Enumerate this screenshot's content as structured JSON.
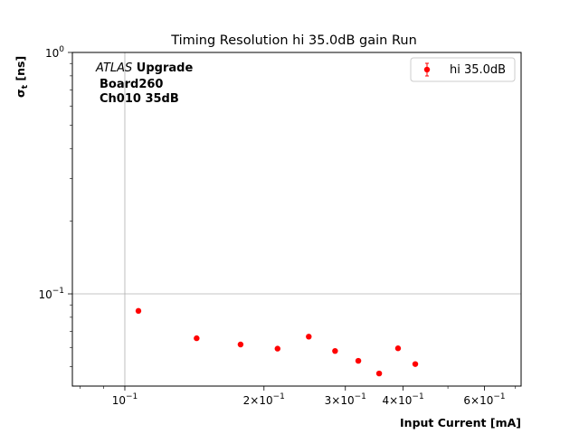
{
  "chart_data": {
    "type": "scatter",
    "title": "Timing Resolution hi 35.0dB gain Run",
    "xlabel": "Input Current [mA]",
    "ylabel": "σ",
    "ylabel_sub": "t",
    "ylabel_unit": " [ns]",
    "x_scale": "log",
    "y_scale": "log",
    "xlim": [
      0.077,
      0.72
    ],
    "ylim": [
      0.0415,
      1.0
    ],
    "grid": true,
    "legend": {
      "placement": "top-right",
      "entries": [
        "hi 35.0dB"
      ]
    },
    "annotation": {
      "italic": "ATLAS",
      "bold": " Upgrade",
      "line2": "Board260",
      "line3": "Ch010 35dB"
    },
    "x_major_ticks": [
      {
        "value": 0.1,
        "mantissa": "",
        "exp": "−1"
      },
      {
        "value": 0.2,
        "mantissa": "2×",
        "exp": "−1"
      },
      {
        "value": 0.3,
        "mantissa": "3×",
        "exp": "−1"
      },
      {
        "value": 0.4,
        "mantissa": "4×",
        "exp": "−1"
      },
      {
        "value": 0.6,
        "mantissa": "6×",
        "exp": "−1"
      }
    ],
    "x_minor_ticks": [
      0.08,
      0.09,
      0.5,
      0.7
    ],
    "y_major_ticks": [
      {
        "value": 0.1,
        "exp": "−1"
      },
      {
        "value": 1.0,
        "exp": "0"
      }
    ],
    "y_minor_ticks": [
      0.05,
      0.06,
      0.07,
      0.08,
      0.09,
      0.2,
      0.3,
      0.4,
      0.5,
      0.6,
      0.7,
      0.8,
      0.9
    ],
    "series": [
      {
        "name": "hi 35.0dB",
        "color": "#ff0000",
        "x": [
          0.107,
          0.143,
          0.178,
          0.214,
          0.25,
          0.285,
          0.32,
          0.355,
          0.39,
          0.425
        ],
        "y": [
          0.085,
          0.0655,
          0.0617,
          0.0593,
          0.0665,
          0.058,
          0.0528,
          0.0468,
          0.0595,
          0.0512
        ]
      }
    ]
  }
}
